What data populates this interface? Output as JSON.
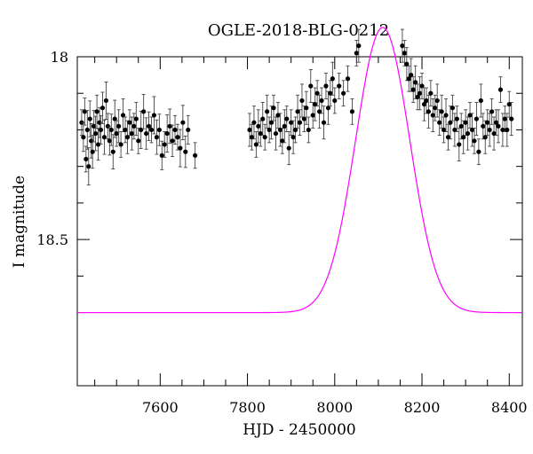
{
  "chart_data": {
    "type": "scatter",
    "title": "OGLE-2018-BLG-0212",
    "xlabel": "HJD - 2450000",
    "ylabel": "I magnitude",
    "xlim": [
      7410,
      8430
    ],
    "ylim": [
      18.9,
      18.0
    ],
    "ylim_note": "",
    "xticks": [
      7600,
      7800,
      8000,
      8200,
      8400
    ],
    "xtick_labels": [
      "7600",
      "7800",
      "8000",
      "8200",
      "8400"
    ],
    "yticks": [
      18.0,
      18.5
    ],
    "ytick_labels": [
      "18",
      "18.5"
    ],
    "y_inverted": true,
    "grid": false,
    "colors": {
      "points": "#000000",
      "model": "#ff00ff"
    },
    "model": {
      "name": "",
      "baseline_mag": 18.7,
      "peak_time": 8110,
      "peak_mag": 17.92,
      "width_days": 62
    },
    "points": [
      [
        7420,
        18.18
      ],
      [
        7424,
        18.22
      ],
      [
        7427,
        18.15
      ],
      [
        7430,
        18.28
      ],
      [
        7433,
        18.2
      ],
      [
        7436,
        18.3
      ],
      [
        7439,
        18.17
      ],
      [
        7442,
        18.23
      ],
      [
        7445,
        18.26
      ],
      [
        7448,
        18.19
      ],
      [
        7452,
        18.21
      ],
      [
        7455,
        18.15
      ],
      [
        7458,
        18.24
      ],
      [
        7461,
        18.18
      ],
      [
        7464,
        18.2
      ],
      [
        7468,
        18.14
      ],
      [
        7472,
        18.22
      ],
      [
        7476,
        18.12
      ],
      [
        7480,
        18.19
      ],
      [
        7484,
        18.23
      ],
      [
        7488,
        18.2
      ],
      [
        7492,
        18.26
      ],
      [
        7496,
        18.17
      ],
      [
        7500,
        18.21
      ],
      [
        7505,
        18.19
      ],
      [
        7510,
        18.24
      ],
      [
        7515,
        18.16
      ],
      [
        7520,
        18.2
      ],
      [
        7525,
        18.22
      ],
      [
        7530,
        18.18
      ],
      [
        7535,
        18.21
      ],
      [
        7540,
        18.19
      ],
      [
        7545,
        18.17
      ],
      [
        7550,
        18.23
      ],
      [
        7556,
        18.2
      ],
      [
        7562,
        18.15
      ],
      [
        7568,
        18.21
      ],
      [
        7574,
        18.19
      ],
      [
        7580,
        18.2
      ],
      [
        7586,
        18.16
      ],
      [
        7592,
        18.22
      ],
      [
        7598,
        18.2
      ],
      [
        7604,
        18.27
      ],
      [
        7610,
        18.24
      ],
      [
        7616,
        18.21
      ],
      [
        7622,
        18.19
      ],
      [
        7628,
        18.23
      ],
      [
        7634,
        18.2
      ],
      [
        7640,
        18.22
      ],
      [
        7646,
        18.25
      ],
      [
        7652,
        18.18
      ],
      [
        7658,
        18.26
      ],
      [
        7664,
        18.2
      ],
      [
        7680,
        18.27
      ],
      [
        7805,
        18.2
      ],
      [
        7810,
        18.22
      ],
      [
        7815,
        18.18
      ],
      [
        7820,
        18.24
      ],
      [
        7825,
        18.19
      ],
      [
        7830,
        18.21
      ],
      [
        7835,
        18.17
      ],
      [
        7840,
        18.22
      ],
      [
        7845,
        18.15
      ],
      [
        7850,
        18.2
      ],
      [
        7855,
        18.18
      ],
      [
        7860,
        18.14
      ],
      [
        7865,
        18.21
      ],
      [
        7870,
        18.16
      ],
      [
        7875,
        18.2
      ],
      [
        7880,
        18.23
      ],
      [
        7885,
        18.19
      ],
      [
        7890,
        18.17
      ],
      [
        7895,
        18.25
      ],
      [
        7900,
        18.18
      ],
      [
        7905,
        18.22
      ],
      [
        7910,
        18.2
      ],
      [
        7915,
        18.15
      ],
      [
        7920,
        18.18
      ],
      [
        7925,
        18.12
      ],
      [
        7930,
        18.17
      ],
      [
        7935,
        18.14
      ],
      [
        7940,
        18.2
      ],
      [
        7945,
        18.08
      ],
      [
        7950,
        18.16
      ],
      [
        7955,
        18.13
      ],
      [
        7960,
        18.1
      ],
      [
        7965,
        18.15
      ],
      [
        7970,
        18.12
      ],
      [
        7975,
        18.18
      ],
      [
        7980,
        18.08
      ],
      [
        7985,
        18.14
      ],
      [
        7990,
        18.1
      ],
      [
        7995,
        18.06
      ],
      [
        8000,
        18.12
      ],
      [
        8010,
        18.08
      ],
      [
        8020,
        18.1
      ],
      [
        8030,
        18.06
      ],
      [
        8040,
        18.15
      ],
      [
        8050,
        17.99
      ],
      [
        8055,
        17.97
      ],
      [
        8155,
        17.97
      ],
      [
        8160,
        17.99
      ],
      [
        8165,
        18.02
      ],
      [
        8170,
        18.06
      ],
      [
        8175,
        18.05
      ],
      [
        8180,
        18.09
      ],
      [
        8185,
        18.07
      ],
      [
        8190,
        18.11
      ],
      [
        8195,
        18.1
      ],
      [
        8200,
        18.08
      ],
      [
        8205,
        18.13
      ],
      [
        8210,
        18.12
      ],
      [
        8215,
        18.15
      ],
      [
        8220,
        18.1
      ],
      [
        8225,
        18.16
      ],
      [
        8230,
        18.14
      ],
      [
        8235,
        18.12
      ],
      [
        8240,
        18.18
      ],
      [
        8245,
        18.15
      ],
      [
        8250,
        18.2
      ],
      [
        8255,
        18.16
      ],
      [
        8260,
        18.22
      ],
      [
        8265,
        18.18
      ],
      [
        8270,
        18.14
      ],
      [
        8275,
        18.2
      ],
      [
        8280,
        18.17
      ],
      [
        8285,
        18.24
      ],
      [
        8290,
        18.19
      ],
      [
        8295,
        18.22
      ],
      [
        8300,
        18.18
      ],
      [
        8305,
        18.21
      ],
      [
        8310,
        18.16
      ],
      [
        8315,
        18.2
      ],
      [
        8320,
        18.23
      ],
      [
        8325,
        18.17
      ],
      [
        8330,
        18.26
      ],
      [
        8335,
        18.12
      ],
      [
        8340,
        18.19
      ],
      [
        8345,
        18.22
      ],
      [
        8350,
        18.18
      ],
      [
        8355,
        18.2
      ],
      [
        8360,
        18.15
      ],
      [
        8365,
        18.21
      ],
      [
        8370,
        18.18
      ],
      [
        8375,
        18.19
      ],
      [
        8380,
        18.09
      ],
      [
        8385,
        18.2
      ],
      [
        8390,
        18.17
      ],
      [
        8395,
        18.2
      ],
      [
        8400,
        18.13
      ],
      [
        8405,
        18.17
      ]
    ]
  }
}
